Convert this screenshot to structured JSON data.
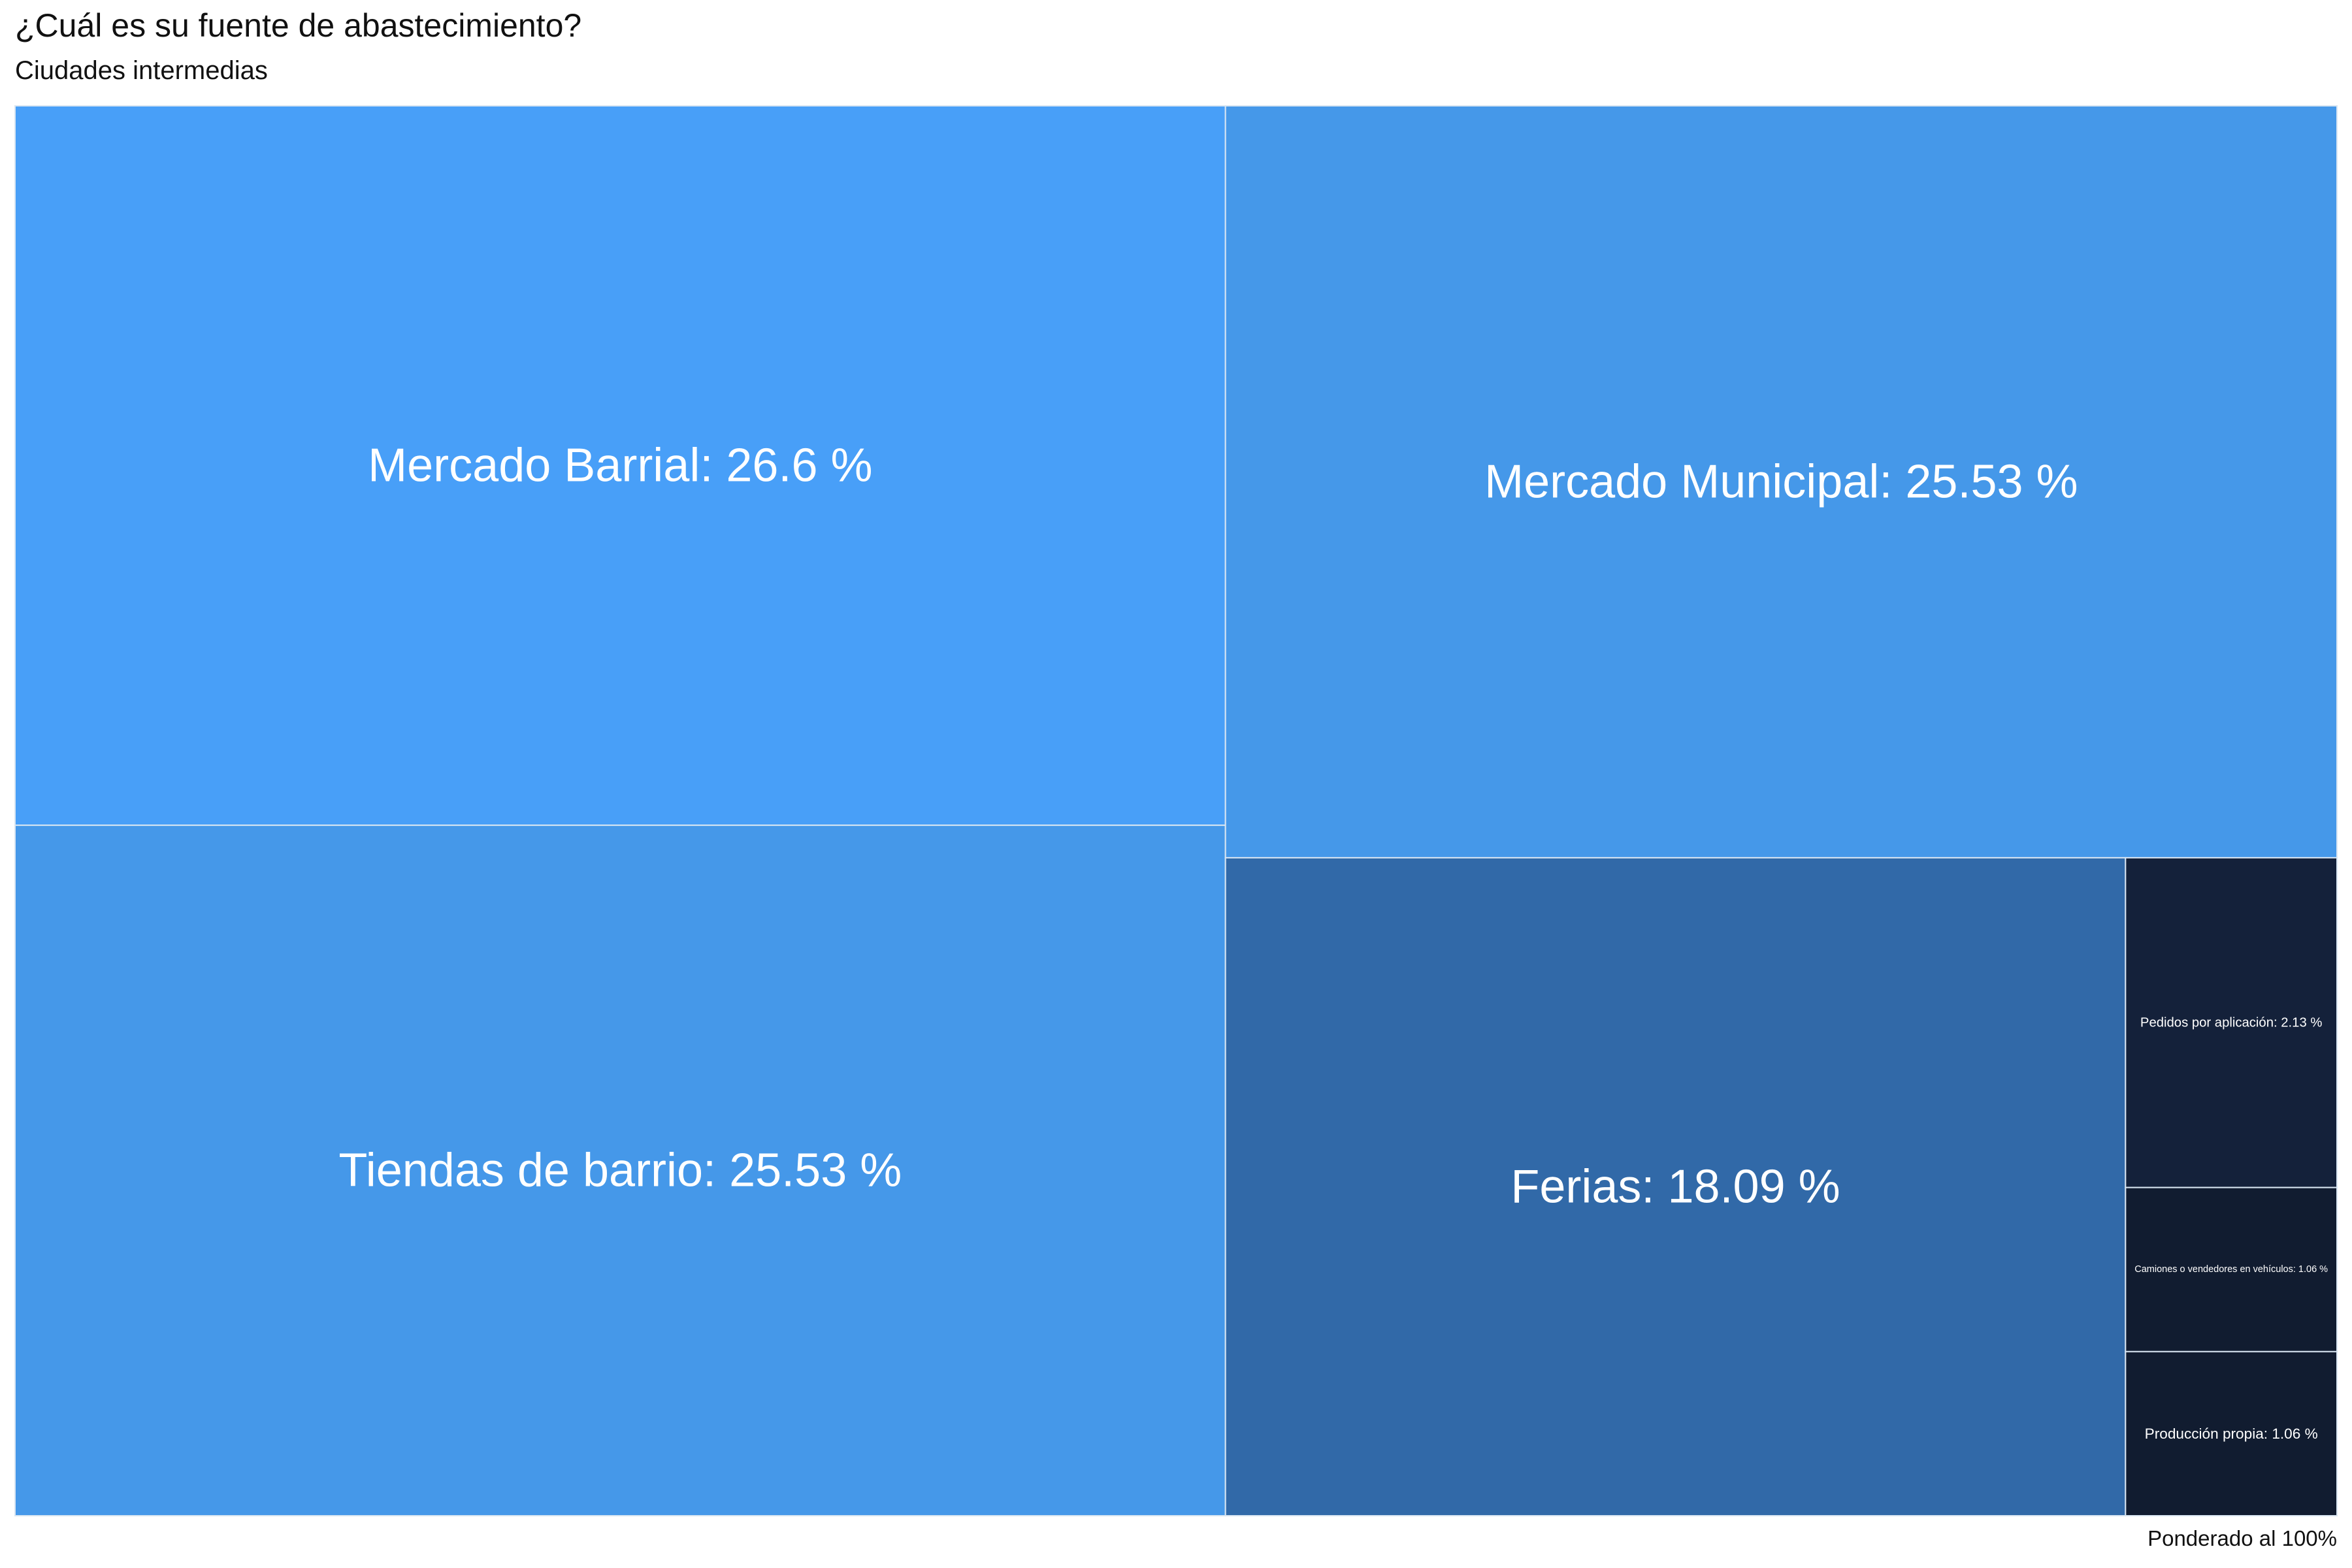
{
  "chart_data": {
    "type": "treemap",
    "title": "¿Cuál es su fuente de abastecimiento?",
    "subtitle": "Ciudades intermedias",
    "caption": "Ponderado al 100%",
    "unit": "%",
    "items": [
      {
        "label": "Mercado Barrial",
        "value": 26.6,
        "color": "#489ff8"
      },
      {
        "label": "Tiendas de barrio",
        "value": 25.53,
        "color": "#4598e9"
      },
      {
        "label": "Mercado Municipal",
        "value": 25.53,
        "color": "#4598e9"
      },
      {
        "label": "Ferias",
        "value": 18.09,
        "color": "#3169a8"
      },
      {
        "label": "Pedidos por aplicación",
        "value": 2.13,
        "color": "#14213a"
      },
      {
        "label": "Camiones o vendedores en vehículos",
        "value": 1.06,
        "color": "#111c30"
      },
      {
        "label": "Producción propia",
        "value": 1.06,
        "color": "#111c30"
      }
    ]
  }
}
